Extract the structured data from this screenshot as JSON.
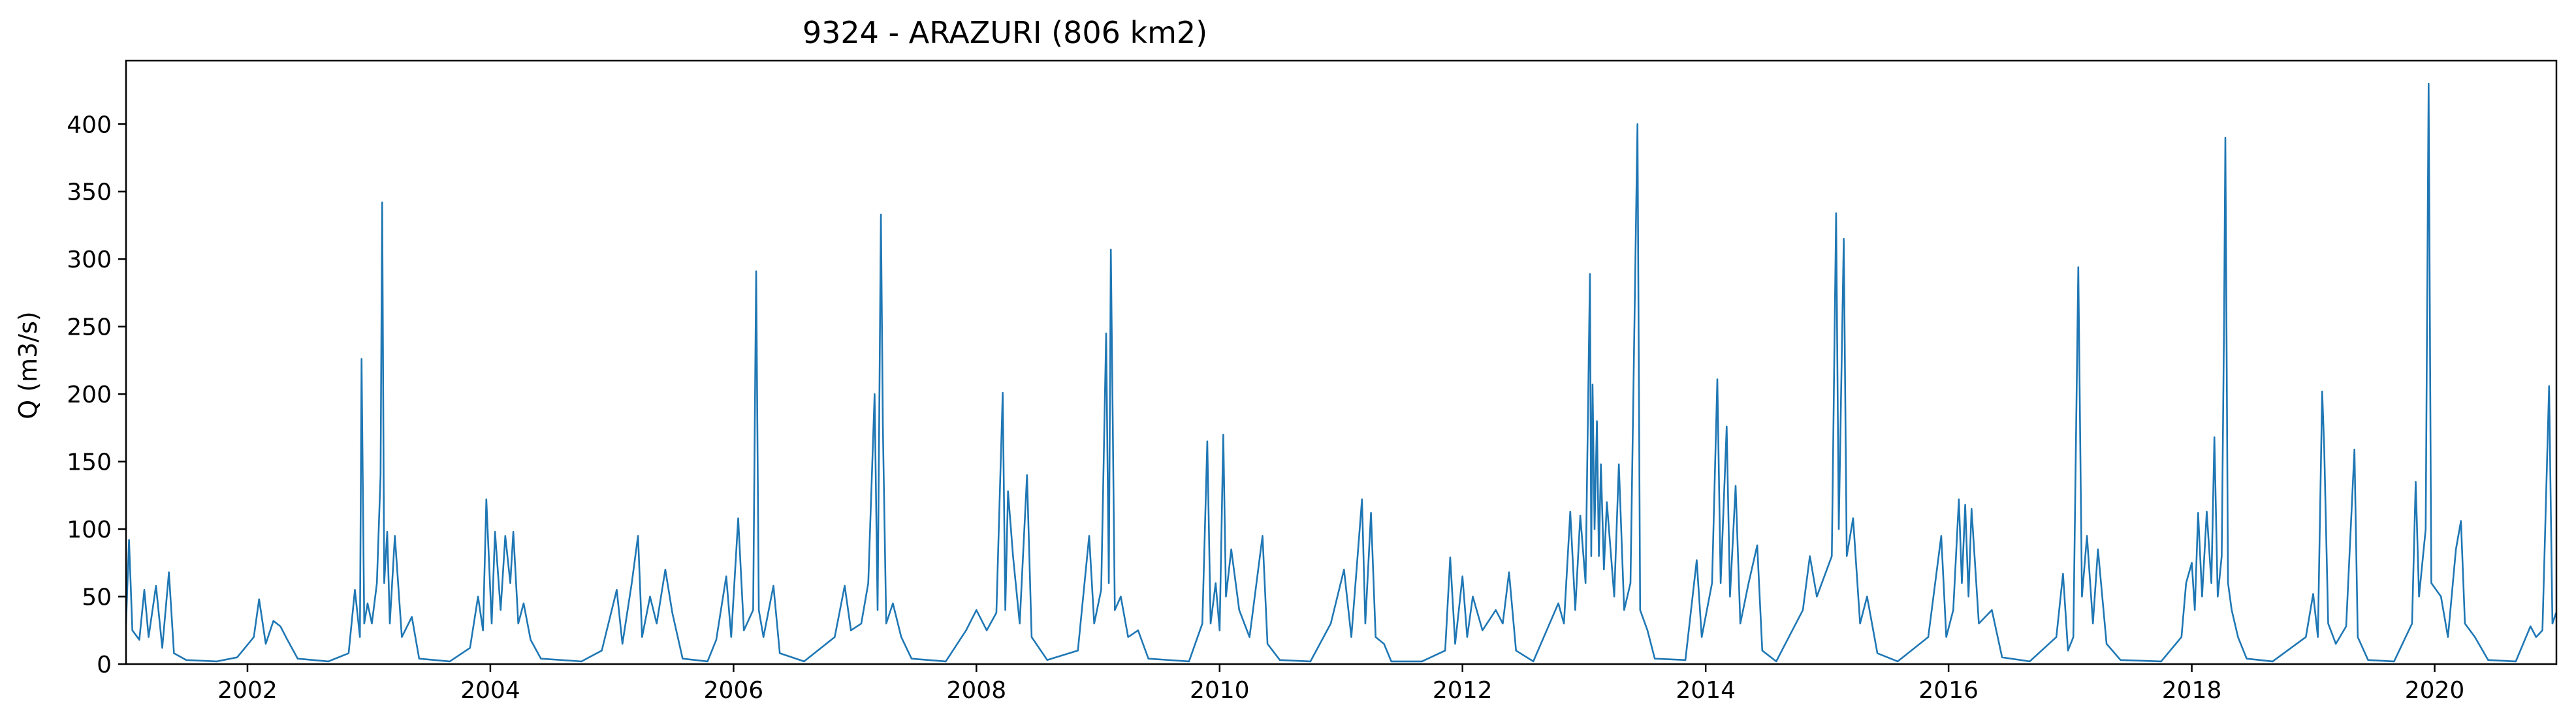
{
  "chart_data": {
    "type": "line",
    "title": "9324 - ARAZURI (806 km2)",
    "xlabel": "",
    "ylabel": "Q (m3/s)",
    "xlim": [
      "2001-01-01",
      "2021-01-01"
    ],
    "ylim": [
      0,
      447
    ],
    "x_ticks": [
      "2002",
      "2004",
      "2006",
      "2008",
      "2010",
      "2012",
      "2014",
      "2016",
      "2018",
      "2020"
    ],
    "y_ticks": [
      "0",
      "50",
      "100",
      "150",
      "200",
      "250",
      "300",
      "350",
      "400"
    ],
    "grid": false,
    "legend": "none",
    "series": [
      {
        "color": "#1f77b4",
        "points": [
          [
            "2001-01-01",
            30
          ],
          [
            "2001-01-10",
            92
          ],
          [
            "2001-01-20",
            25
          ],
          [
            "2001-02-10",
            18
          ],
          [
            "2001-02-25",
            55
          ],
          [
            "2001-03-10",
            20
          ],
          [
            "2001-04-01",
            58
          ],
          [
            "2001-04-20",
            12
          ],
          [
            "2001-05-10",
            68
          ],
          [
            "2001-05-25",
            8
          ],
          [
            "2001-07-01",
            3
          ],
          [
            "2001-10-01",
            2
          ],
          [
            "2001-12-01",
            5
          ],
          [
            "2002-01-20",
            20
          ],
          [
            "2002-02-05",
            48
          ],
          [
            "2002-02-25",
            15
          ],
          [
            "2002-03-20",
            32
          ],
          [
            "2002-04-10",
            28
          ],
          [
            "2002-05-01",
            18
          ],
          [
            "2002-06-01",
            4
          ],
          [
            "2002-09-01",
            2
          ],
          [
            "2002-11-01",
            8
          ],
          [
            "2002-11-20",
            55
          ],
          [
            "2002-12-05",
            20
          ],
          [
            "2002-12-10",
            226
          ],
          [
            "2002-12-18",
            30
          ],
          [
            "2002-12-28",
            45
          ],
          [
            "2003-01-10",
            30
          ],
          [
            "2003-01-25",
            60
          ],
          [
            "2003-02-05",
            140
          ],
          [
            "2003-02-10",
            342
          ],
          [
            "2003-02-16",
            60
          ],
          [
            "2003-02-25",
            98
          ],
          [
            "2003-03-05",
            30
          ],
          [
            "2003-03-20",
            95
          ],
          [
            "2003-04-10",
            20
          ],
          [
            "2003-05-10",
            35
          ],
          [
            "2003-06-01",
            4
          ],
          [
            "2003-09-01",
            2
          ],
          [
            "2003-11-01",
            12
          ],
          [
            "2003-11-25",
            50
          ],
          [
            "2003-12-10",
            25
          ],
          [
            "2003-12-20",
            122
          ],
          [
            "2004-01-05",
            30
          ],
          [
            "2004-01-15",
            98
          ],
          [
            "2004-02-01",
            40
          ],
          [
            "2004-02-15",
            95
          ],
          [
            "2004-03-01",
            60
          ],
          [
            "2004-03-10",
            98
          ],
          [
            "2004-03-25",
            30
          ],
          [
            "2004-04-10",
            45
          ],
          [
            "2004-05-01",
            18
          ],
          [
            "2004-06-01",
            4
          ],
          [
            "2004-10-01",
            2
          ],
          [
            "2004-12-01",
            10
          ],
          [
            "2005-01-15",
            55
          ],
          [
            "2005-02-01",
            15
          ],
          [
            "2005-03-01",
            60
          ],
          [
            "2005-03-20",
            95
          ],
          [
            "2005-04-01",
            20
          ],
          [
            "2005-04-25",
            50
          ],
          [
            "2005-05-15",
            30
          ],
          [
            "2005-06-10",
            70
          ],
          [
            "2005-07-01",
            38
          ],
          [
            "2005-08-01",
            4
          ],
          [
            "2005-10-15",
            2
          ],
          [
            "2005-11-10",
            18
          ],
          [
            "2005-12-10",
            65
          ],
          [
            "2005-12-25",
            20
          ],
          [
            "2006-01-15",
            108
          ],
          [
            "2006-02-01",
            25
          ],
          [
            "2006-03-01",
            40
          ],
          [
            "2006-03-10",
            291
          ],
          [
            "2006-03-18",
            40
          ],
          [
            "2006-04-01",
            20
          ],
          [
            "2006-05-01",
            58
          ],
          [
            "2006-05-20",
            8
          ],
          [
            "2006-08-01",
            2
          ],
          [
            "2006-11-01",
            20
          ],
          [
            "2006-12-01",
            58
          ],
          [
            "2006-12-20",
            25
          ],
          [
            "2007-01-20",
            30
          ],
          [
            "2007-02-10",
            60
          ],
          [
            "2007-03-01",
            200
          ],
          [
            "2007-03-10",
            40
          ],
          [
            "2007-03-20",
            333
          ],
          [
            "2007-03-26",
            175
          ],
          [
            "2007-04-05",
            30
          ],
          [
            "2007-04-25",
            45
          ],
          [
            "2007-05-20",
            20
          ],
          [
            "2007-06-20",
            4
          ],
          [
            "2007-10-01",
            2
          ],
          [
            "2007-12-01",
            25
          ],
          [
            "2008-01-01",
            40
          ],
          [
            "2008-02-01",
            25
          ],
          [
            "2008-03-01",
            38
          ],
          [
            "2008-03-20",
            201
          ],
          [
            "2008-03-28",
            40
          ],
          [
            "2008-04-05",
            128
          ],
          [
            "2008-04-20",
            80
          ],
          [
            "2008-05-10",
            30
          ],
          [
            "2008-06-01",
            140
          ],
          [
            "2008-06-15",
            20
          ],
          [
            "2008-08-01",
            3
          ],
          [
            "2008-11-01",
            10
          ],
          [
            "2008-12-05",
            95
          ],
          [
            "2008-12-20",
            30
          ],
          [
            "2009-01-10",
            55
          ],
          [
            "2009-01-25",
            245
          ],
          [
            "2009-02-02",
            60
          ],
          [
            "2009-02-08",
            307
          ],
          [
            "2009-02-20",
            40
          ],
          [
            "2009-03-10",
            50
          ],
          [
            "2009-04-01",
            20
          ],
          [
            "2009-05-01",
            25
          ],
          [
            "2009-06-01",
            4
          ],
          [
            "2009-10-01",
            2
          ],
          [
            "2009-11-10",
            30
          ],
          [
            "2009-11-25",
            165
          ],
          [
            "2009-12-05",
            30
          ],
          [
            "2009-12-20",
            60
          ],
          [
            "2010-01-01",
            25
          ],
          [
            "2010-01-12",
            170
          ],
          [
            "2010-01-20",
            50
          ],
          [
            "2010-02-05",
            85
          ],
          [
            "2010-03-01",
            40
          ],
          [
            "2010-04-01",
            20
          ],
          [
            "2010-05-10",
            95
          ],
          [
            "2010-05-25",
            15
          ],
          [
            "2010-07-01",
            3
          ],
          [
            "2010-10-01",
            2
          ],
          [
            "2010-12-01",
            30
          ],
          [
            "2011-01-10",
            70
          ],
          [
            "2011-02-01",
            20
          ],
          [
            "2011-03-05",
            122
          ],
          [
            "2011-03-15",
            30
          ],
          [
            "2011-04-01",
            112
          ],
          [
            "2011-04-15",
            20
          ],
          [
            "2011-05-10",
            15
          ],
          [
            "2011-06-01",
            2
          ],
          [
            "2011-09-01",
            2
          ],
          [
            "2011-11-10",
            10
          ],
          [
            "2011-11-25",
            79
          ],
          [
            "2011-12-10",
            15
          ],
          [
            "2012-01-01",
            65
          ],
          [
            "2012-01-15",
            20
          ],
          [
            "2012-02-01",
            50
          ],
          [
            "2012-03-01",
            25
          ],
          [
            "2012-04-10",
            40
          ],
          [
            "2012-05-01",
            30
          ],
          [
            "2012-05-20",
            68
          ],
          [
            "2012-06-10",
            10
          ],
          [
            "2012-08-01",
            2
          ],
          [
            "2012-10-15",
            45
          ],
          [
            "2012-11-01",
            30
          ],
          [
            "2012-11-20",
            113
          ],
          [
            "2012-12-05",
            40
          ],
          [
            "2012-12-20",
            110
          ],
          [
            "2013-01-05",
            60
          ],
          [
            "2013-01-18",
            289
          ],
          [
            "2013-01-22",
            80
          ],
          [
            "2013-01-26",
            207
          ],
          [
            "2013-02-01",
            100
          ],
          [
            "2013-02-08",
            180
          ],
          [
            "2013-02-14",
            80
          ],
          [
            "2013-02-20",
            148
          ],
          [
            "2013-03-01",
            70
          ],
          [
            "2013-03-10",
            120
          ],
          [
            "2013-04-01",
            50
          ],
          [
            "2013-04-15",
            148
          ],
          [
            "2013-05-01",
            40
          ],
          [
            "2013-05-20",
            60
          ],
          [
            "2013-06-10",
            400
          ],
          [
            "2013-06-18",
            40
          ],
          [
            "2013-07-10",
            25
          ],
          [
            "2013-08-01",
            4
          ],
          [
            "2013-11-01",
            3
          ],
          [
            "2013-12-05",
            77
          ],
          [
            "2013-12-20",
            20
          ],
          [
            "2014-01-20",
            60
          ],
          [
            "2014-02-05",
            211
          ],
          [
            "2014-02-15",
            60
          ],
          [
            "2014-03-05",
            176
          ],
          [
            "2014-03-15",
            50
          ],
          [
            "2014-04-01",
            132
          ],
          [
            "2014-04-15",
            30
          ],
          [
            "2014-05-10",
            60
          ],
          [
            "2014-06-05",
            88
          ],
          [
            "2014-06-20",
            10
          ],
          [
            "2014-08-01",
            2
          ],
          [
            "2014-10-20",
            40
          ],
          [
            "2014-11-10",
            80
          ],
          [
            "2014-12-01",
            50
          ],
          [
            "2015-01-15",
            80
          ],
          [
            "2015-01-28",
            334
          ],
          [
            "2015-02-05",
            100
          ],
          [
            "2015-02-20",
            315
          ],
          [
            "2015-03-01",
            80
          ],
          [
            "2015-03-20",
            108
          ],
          [
            "2015-04-10",
            30
          ],
          [
            "2015-05-01",
            50
          ],
          [
            "2015-06-01",
            8
          ],
          [
            "2015-08-01",
            2
          ],
          [
            "2015-11-01",
            20
          ],
          [
            "2015-12-10",
            95
          ],
          [
            "2015-12-25",
            20
          ],
          [
            "2016-01-15",
            40
          ],
          [
            "2016-02-01",
            122
          ],
          [
            "2016-02-10",
            60
          ],
          [
            "2016-02-20",
            118
          ],
          [
            "2016-03-01",
            50
          ],
          [
            "2016-03-10",
            115
          ],
          [
            "2016-04-01",
            30
          ],
          [
            "2016-05-10",
            40
          ],
          [
            "2016-06-10",
            5
          ],
          [
            "2016-09-01",
            2
          ],
          [
            "2016-11-20",
            20
          ],
          [
            "2016-12-10",
            67
          ],
          [
            "2016-12-25",
            10
          ],
          [
            "2017-01-10",
            20
          ],
          [
            "2017-01-25",
            294
          ],
          [
            "2017-02-05",
            50
          ],
          [
            "2017-02-20",
            95
          ],
          [
            "2017-03-10",
            30
          ],
          [
            "2017-03-25",
            85
          ],
          [
            "2017-04-20",
            15
          ],
          [
            "2017-06-01",
            3
          ],
          [
            "2017-10-01",
            2
          ],
          [
            "2017-12-01",
            20
          ],
          [
            "2017-12-15",
            60
          ],
          [
            "2018-01-01",
            75
          ],
          [
            "2018-01-10",
            40
          ],
          [
            "2018-01-20",
            112
          ],
          [
            "2018-02-01",
            50
          ],
          [
            "2018-02-15",
            113
          ],
          [
            "2018-03-01",
            60
          ],
          [
            "2018-03-10",
            168
          ],
          [
            "2018-03-20",
            50
          ],
          [
            "2018-04-01",
            80
          ],
          [
            "2018-04-08",
            252
          ],
          [
            "2018-04-12",
            390
          ],
          [
            "2018-04-20",
            60
          ],
          [
            "2018-05-01",
            40
          ],
          [
            "2018-05-20",
            20
          ],
          [
            "2018-06-15",
            4
          ],
          [
            "2018-09-01",
            2
          ],
          [
            "2018-12-10",
            20
          ],
          [
            "2019-01-01",
            52
          ],
          [
            "2019-01-15",
            20
          ],
          [
            "2019-01-28",
            202
          ],
          [
            "2019-02-03",
            160
          ],
          [
            "2019-02-15",
            30
          ],
          [
            "2019-03-10",
            15
          ],
          [
            "2019-04-10",
            28
          ],
          [
            "2019-05-05",
            159
          ],
          [
            "2019-05-15",
            20
          ],
          [
            "2019-06-15",
            3
          ],
          [
            "2019-09-01",
            2
          ],
          [
            "2019-10-25",
            30
          ],
          [
            "2019-11-05",
            135
          ],
          [
            "2019-11-15",
            50
          ],
          [
            "2019-12-05",
            100
          ],
          [
            "2019-12-14",
            430
          ],
          [
            "2019-12-22",
            60
          ],
          [
            "2020-01-20",
            50
          ],
          [
            "2020-02-10",
            20
          ],
          [
            "2020-03-05",
            85
          ],
          [
            "2020-03-20",
            106
          ],
          [
            "2020-04-01",
            30
          ],
          [
            "2020-05-01",
            20
          ],
          [
            "2020-06-10",
            3
          ],
          [
            "2020-09-01",
            2
          ],
          [
            "2020-10-15",
            28
          ],
          [
            "2020-11-01",
            20
          ],
          [
            "2020-11-20",
            25
          ],
          [
            "2020-12-10",
            206
          ],
          [
            "2020-12-20",
            30
          ],
          [
            "2020-12-31",
            38
          ]
        ]
      }
    ]
  }
}
